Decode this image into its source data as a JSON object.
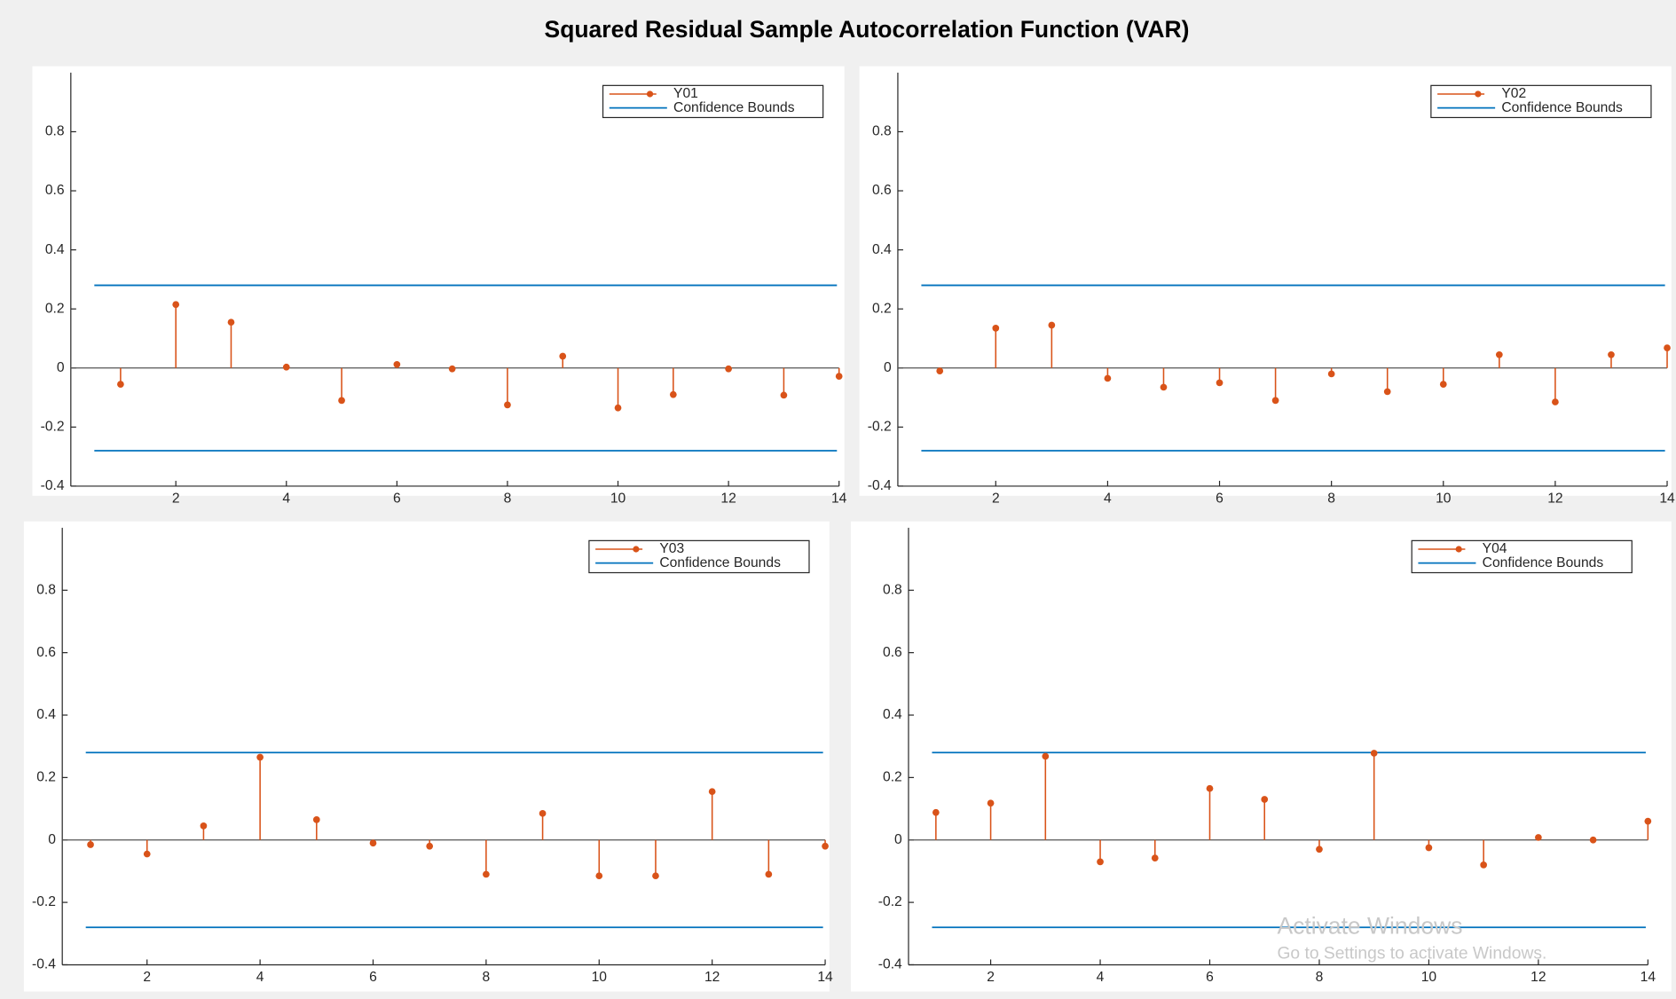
{
  "title": "Squared Residual Sample Autocorrelation Function (VAR)",
  "watermark": [
    "Activate Windows",
    "Go to Settings to activate Windows."
  ],
  "chart_data": [
    {
      "type": "stem",
      "x": [
        1,
        2,
        3,
        4,
        5,
        6,
        7,
        8,
        9,
        10,
        11,
        12,
        13,
        14
      ],
      "series": [
        {
          "name": "Y01",
          "color": "#d95319",
          "values": [
            -0.055,
            0.215,
            0.155,
            0.003,
            -0.11,
            0.012,
            -0.003,
            -0.125,
            0.04,
            -0.135,
            -0.09,
            -0.003,
            -0.092,
            -0.028
          ]
        }
      ],
      "confidence": {
        "name": "Confidence Bounds",
        "color": "#0072bd",
        "values": [
          0.28,
          -0.28
        ]
      },
      "xlim": [
        0.1,
        14
      ],
      "xticks": [
        2,
        4,
        6,
        8,
        10,
        12,
        14
      ],
      "ylim": [
        -0.4,
        1
      ],
      "yticks": [
        -0.4,
        -0.2,
        0,
        0.2,
        0.4,
        0.6,
        0.8
      ]
    },
    {
      "type": "stem",
      "x": [
        1,
        2,
        3,
        4,
        5,
        6,
        7,
        8,
        9,
        10,
        11,
        12,
        13,
        14
      ],
      "series": [
        {
          "name": "Y02",
          "color": "#d95319",
          "values": [
            -0.01,
            0.135,
            0.145,
            -0.035,
            -0.065,
            -0.05,
            -0.11,
            -0.02,
            -0.08,
            -0.055,
            0.045,
            -0.115,
            0.045,
            0.068
          ]
        }
      ],
      "confidence": {
        "name": "Confidence Bounds",
        "color": "#0072bd",
        "values": [
          0.28,
          -0.28
        ]
      },
      "xlim": [
        0.25,
        14
      ],
      "xticks": [
        2,
        4,
        6,
        8,
        10,
        12,
        14
      ],
      "ylim": [
        -0.4,
        1
      ],
      "yticks": [
        -0.4,
        -0.2,
        0,
        0.2,
        0.4,
        0.6,
        0.8
      ]
    },
    {
      "type": "stem",
      "x": [
        1,
        2,
        3,
        4,
        5,
        6,
        7,
        8,
        9,
        10,
        11,
        12,
        13,
        14
      ],
      "series": [
        {
          "name": "Y03",
          "color": "#d95319",
          "values": [
            -0.015,
            -0.045,
            0.045,
            0.265,
            0.065,
            -0.01,
            -0.02,
            -0.11,
            0.085,
            -0.115,
            -0.115,
            0.155,
            -0.11,
            -0.02
          ]
        }
      ],
      "confidence": {
        "name": "Confidence Bounds",
        "color": "#0072bd",
        "values": [
          0.28,
          -0.28
        ]
      },
      "xlim": [
        0.5,
        14
      ],
      "xticks": [
        2,
        4,
        6,
        8,
        10,
        12,
        14
      ],
      "ylim": [
        -0.4,
        1
      ],
      "yticks": [
        -0.4,
        -0.2,
        0,
        0.2,
        0.4,
        0.6,
        0.8
      ]
    },
    {
      "type": "stem",
      "x": [
        1,
        2,
        3,
        4,
        5,
        6,
        7,
        8,
        9,
        10,
        11,
        12,
        13,
        14
      ],
      "series": [
        {
          "name": "Y04",
          "color": "#d95319",
          "values": [
            0.088,
            0.118,
            0.268,
            -0.07,
            -0.058,
            0.165,
            0.13,
            -0.03,
            0.278,
            -0.025,
            -0.08,
            0.008,
            0,
            0.06
          ]
        }
      ],
      "confidence": {
        "name": "Confidence Bounds",
        "color": "#0072bd",
        "values": [
          0.28,
          -0.28
        ]
      },
      "xlim": [
        0.5,
        14
      ],
      "xticks": [
        2,
        4,
        6,
        8,
        10,
        12,
        14
      ],
      "ylim": [
        -0.4,
        1
      ],
      "yticks": [
        -0.4,
        -0.2,
        0,
        0.2,
        0.4,
        0.6,
        0.8
      ]
    }
  ]
}
